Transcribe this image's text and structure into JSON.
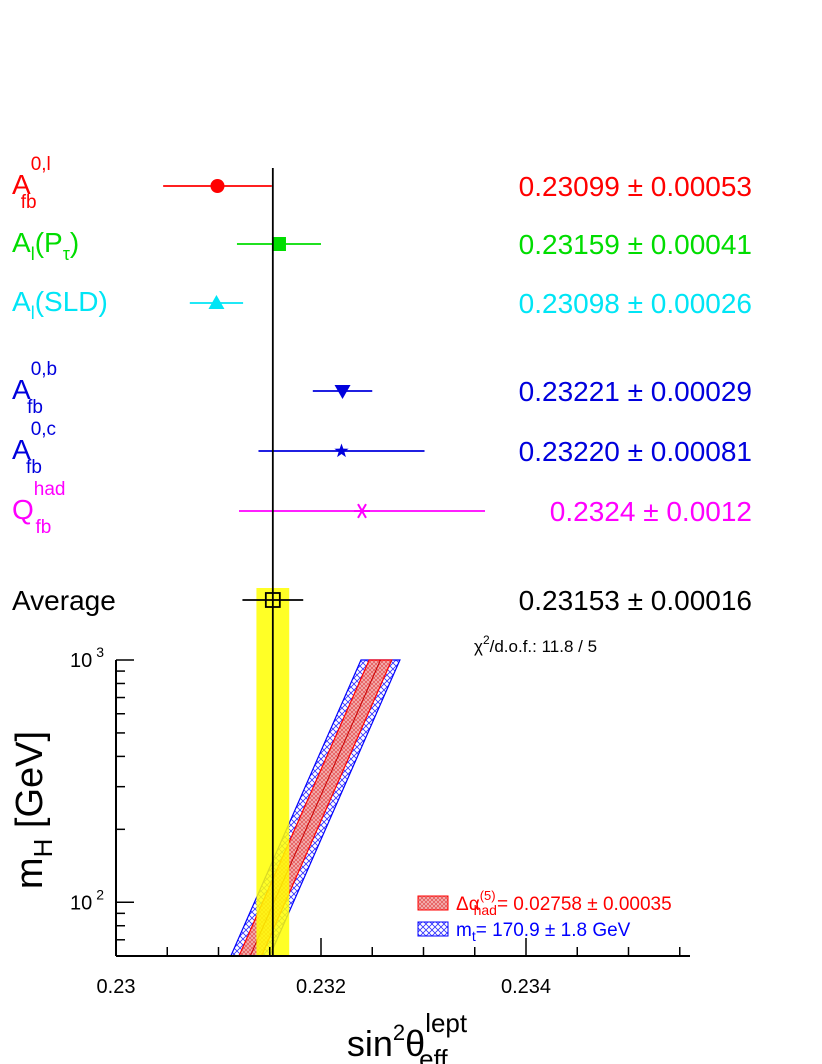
{
  "chart_data": [
    {
      "type": "scatter",
      "subtype": "horizontal error bars (measurement summary)",
      "measurements": [
        {
          "label_main": "A",
          "label_sub": "fb",
          "label_sup": "0,l",
          "value": 0.23099,
          "error": 0.00053,
          "value_text": "0.23099 ± 0.00053",
          "color": "#ff0000",
          "marker": "circle"
        },
        {
          "label_main": "A",
          "label_sub": "l",
          "label_rest": "(P",
          "label_rest_sub": "τ",
          "label_close": ")",
          "value": 0.23159,
          "error": 0.00041,
          "value_text": "0.23159 ± 0.00041",
          "color": "#00dd00",
          "marker": "square"
        },
        {
          "label_main": "A",
          "label_sub": "l",
          "label_rest": "(SLD)",
          "value": 0.23098,
          "error": 0.00026,
          "value_text": "0.23098 ± 0.00026",
          "color": "#00e5f5",
          "marker": "triangle-up"
        },
        {
          "label_main": "A",
          "label_sub": "fb",
          "label_sup": "0,b",
          "value": 0.23221,
          "error": 0.00029,
          "value_text": "0.23221 ± 0.00029",
          "color": "#0000dd",
          "marker": "triangle-down"
        },
        {
          "label_main": "A",
          "label_sub": "fb",
          "label_sup": "0,c",
          "value": 0.2322,
          "error": 0.00081,
          "value_text": "0.23220 ± 0.00081",
          "color": "#0000dd",
          "marker": "star"
        },
        {
          "label_main": "Q",
          "label_sub": "fb",
          "label_sup": "had",
          "value": 0.2324,
          "error": 0.0012,
          "value_text": "0.2324 ± 0.0012",
          "color": "#ff00ff",
          "marker": "asterisk"
        }
      ],
      "average": {
        "label": "Average",
        "value": 0.23153,
        "error": 0.00016,
        "value_text": "0.23153 ± 0.00016",
        "color": "#000000",
        "band_color": "#ffff00"
      },
      "chi2_main": "χ",
      "chi2_sup": "2",
      "chi2_rest": "/d.o.f.: 11.8 / 5"
    },
    {
      "type": "area",
      "xlabel_main": "sin",
      "xlabel_sup1": "2",
      "xlabel_theta": "θ",
      "xlabel_sup": "lept",
      "xlabel_sub": "eff",
      "ylabel_main": "m",
      "ylabel_sub": "H",
      "ylabel_unit": "[GeV]",
      "xlim": [
        0.23,
        0.2356
      ],
      "ylim": [
        60,
        1000
      ],
      "y_scale": "log",
      "x_ticks": [
        "0.23",
        "0.232",
        "0.234"
      ],
      "x_tick_values": [
        0.23,
        0.232,
        0.234
      ],
      "y_ticks": [
        {
          "base": "10",
          "exp": "2",
          "value": 100
        },
        {
          "base": "10",
          "exp": "3",
          "value": 1000
        }
      ],
      "bands": [
        {
          "legend_main": "Δα",
          "legend_sub": "had",
          "legend_sup": "(5)",
          "legend_rest": "= 0.02758 ± 0.00035",
          "color": "#ff0000",
          "fill": "#f0a0a0",
          "x_center_at_ylo": 0.23131,
          "x_center_at_yhi": 0.23258,
          "half_width": 0.00011
        },
        {
          "legend_main": "m",
          "legend_sub": "t",
          "legend_rest": "= 170.9 ± 1.8 GeV",
          "color": "#0000ff",
          "fill": "#c8c8ff",
          "x_center_at_ylo": 0.23131,
          "x_center_at_yhi": 0.23258,
          "half_width": 0.00019
        }
      ],
      "band_y_range": [
        60,
        1000
      ]
    }
  ]
}
